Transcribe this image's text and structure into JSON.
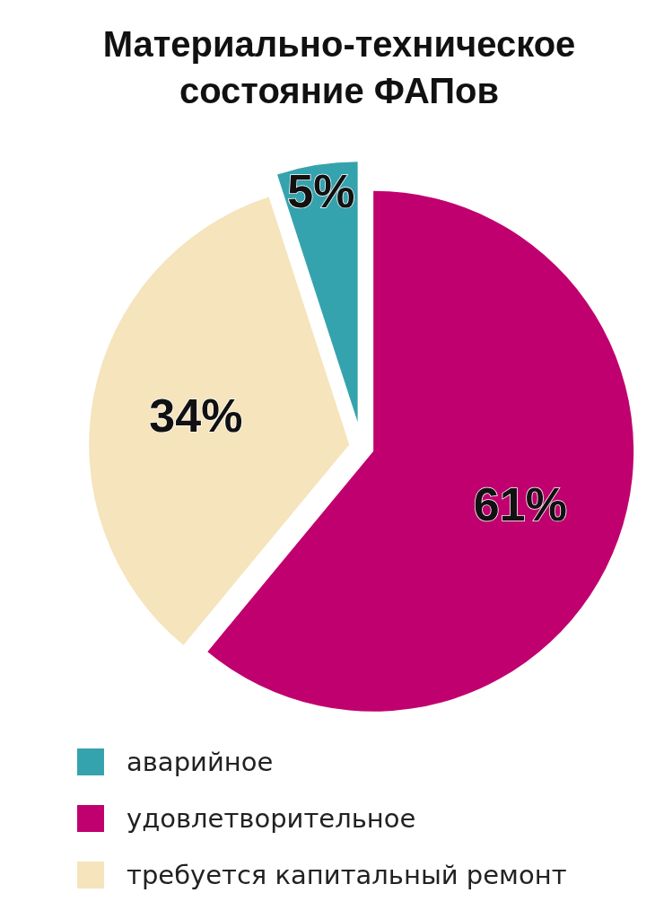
{
  "chart_data": {
    "type": "pie",
    "title": "Материально-техническое состояние ФАПов",
    "categories": [
      "аварийное",
      "удовлетворительное",
      "требуется капитальный ремонт"
    ],
    "values": [
      5,
      61,
      34
    ],
    "colors": [
      "#35a3ad",
      "#c0006f",
      "#f5e4bc"
    ],
    "value_labels": [
      "5%",
      "61%",
      "34%"
    ],
    "legend": "bottom"
  }
}
